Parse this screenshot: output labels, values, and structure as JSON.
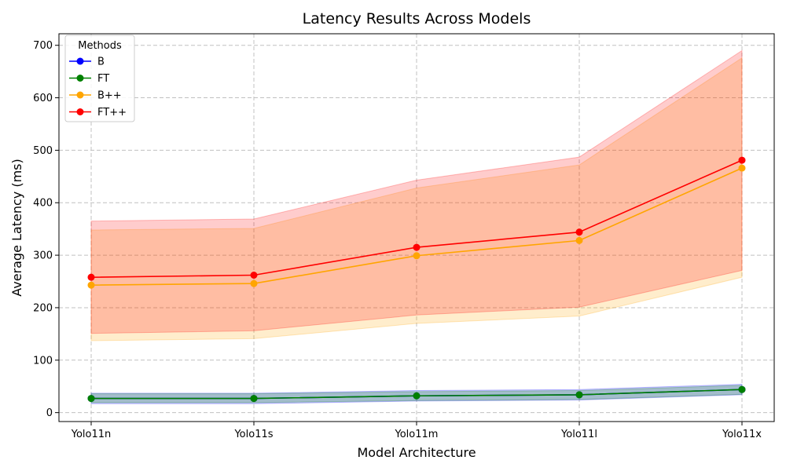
{
  "chart_data": {
    "type": "line",
    "title": "Latency Results Across Models",
    "xlabel": "Model Architecture",
    "ylabel": "Average Latency (ms)",
    "categories": [
      "Yolo11n",
      "Yolo11s",
      "Yolo11m",
      "Yolo11l",
      "Yolo11x"
    ],
    "ylim": [
      -17,
      722
    ],
    "yticks": [
      0,
      100,
      200,
      300,
      400,
      500,
      600,
      700
    ],
    "grid": true,
    "legend": {
      "title": "Methods",
      "placement": "top-left"
    },
    "series": [
      {
        "name": "B",
        "color": "#0000ff",
        "values": [
          27,
          27,
          32,
          34,
          44
        ],
        "band_low": [
          17,
          17,
          22,
          24,
          34
        ],
        "band_high": [
          37,
          37,
          42,
          44,
          54
        ]
      },
      {
        "name": "FT",
        "color": "#008000",
        "values": [
          27,
          27,
          32,
          34,
          44
        ],
        "band_low": [
          19,
          19,
          23,
          25,
          35
        ],
        "band_high": [
          36,
          36,
          40,
          42,
          52
        ]
      },
      {
        "name": "B++",
        "color": "#ffa500",
        "values": [
          243,
          246,
          299,
          328,
          466
        ],
        "band_low": [
          137,
          141,
          170,
          184,
          258
        ],
        "band_high": [
          348,
          351,
          428,
          472,
          676
        ]
      },
      {
        "name": "FT++",
        "color": "#ff0000",
        "values": [
          258,
          262,
          315,
          344,
          481
        ],
        "band_low": [
          151,
          156,
          186,
          201,
          271
        ],
        "band_high": [
          365,
          369,
          443,
          487,
          690
        ]
      }
    ]
  }
}
